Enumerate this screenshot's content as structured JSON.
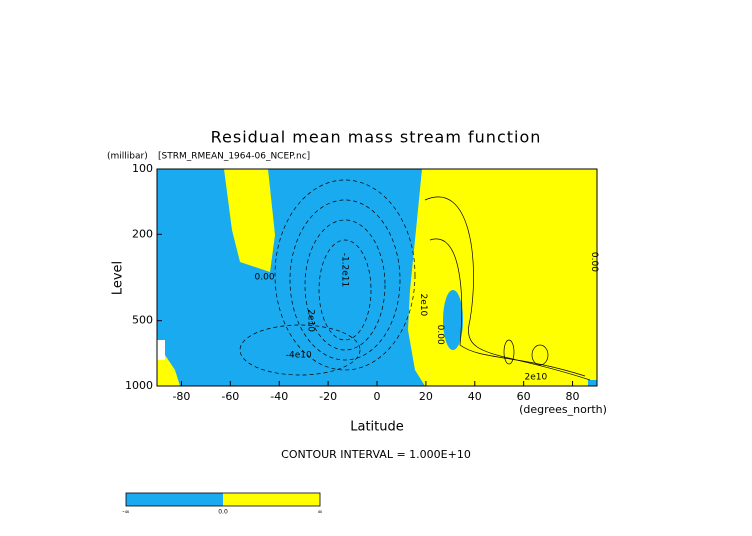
{
  "chart_data": {
    "type": "contour",
    "title": "Residual mean mass stream function",
    "subtitle": "[STRM_RMEAN_1964-06_NCEP.nc]",
    "y_unit": "(millibar)",
    "x_unit": "(degrees_north)",
    "xlabel": "Latitude",
    "ylabel": "Level",
    "note": "CONTOUR INTERVAL = 1.000E+10",
    "xlim": [
      -90,
      90
    ],
    "xticks": [
      -80,
      -60,
      -40,
      -20,
      0,
      20,
      40,
      60,
      80
    ],
    "ylim": [
      1000,
      100
    ],
    "yticks": [
      100,
      200,
      500,
      1000
    ],
    "ylog": true,
    "colors": [
      "#1aaaf0",
      "#ffff00"
    ],
    "annotations": [
      {
        "text": "0.00",
        "x": -46,
        "y": 315
      },
      {
        "text": "-1.2e11",
        "x": -13,
        "y": 292
      },
      {
        "text": "2e10",
        "x": -27,
        "y": 500
      },
      {
        "text": "-4e10",
        "x": -32,
        "y": 720
      },
      {
        "text": "2e10",
        "x": 65,
        "y": 910
      },
      {
        "text": "0.00",
        "x": 89,
        "y": 268
      },
      {
        "text": "0.00",
        "x": 26,
        "y": 580
      },
      {
        "text": "2e10",
        "x": 19,
        "y": 423
      }
    ],
    "colorbar": {
      "labels": [
        "-∞",
        "0.0",
        "∞"
      ]
    }
  }
}
